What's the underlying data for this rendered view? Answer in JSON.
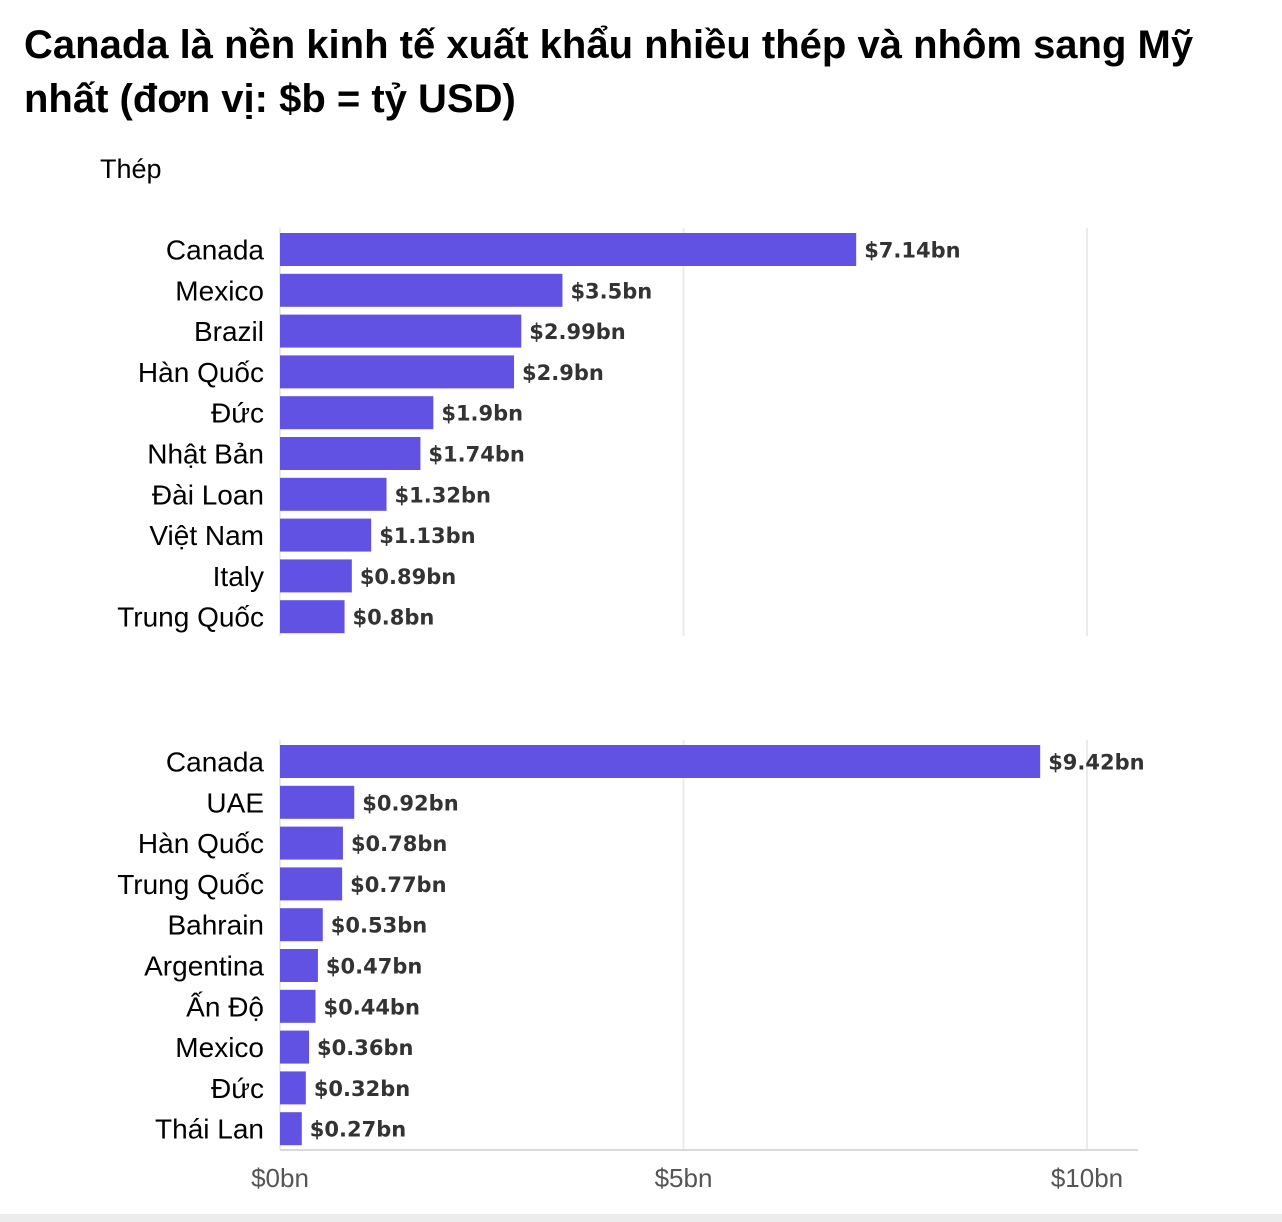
{
  "title": "Canada là nền kinh tế xuất khẩu nhiều thép và nhôm sang Mỹ nhất (đơn vị: $b = tỷ USD)",
  "chart_data": [
    {
      "type": "bar",
      "orientation": "horizontal",
      "title": "Thép",
      "categories": [
        "Canada",
        "Mexico",
        "Brazil",
        "Hàn Quốc",
        "Đức",
        "Nhật Bản",
        "Đài Loan",
        "Việt Nam",
        "Italy",
        "Trung Quốc"
      ],
      "values": [
        7.14,
        3.5,
        2.99,
        2.9,
        1.9,
        1.74,
        1.32,
        1.13,
        0.89,
        0.8
      ],
      "labels": [
        "$7.14bn",
        "$3.5bn",
        "$2.99bn",
        "$2.9bn",
        "$1.9bn",
        "$1.74bn",
        "$1.32bn",
        "$1.13bn",
        "$0.89bn",
        "$0.8bn"
      ],
      "xlim": [
        0,
        10.6
      ],
      "grid": true
    },
    {
      "type": "bar",
      "orientation": "horizontal",
      "categories": [
        "Canada",
        "UAE",
        "Hàn Quốc",
        "Trung Quốc",
        "Bahrain",
        "Argentina",
        "Ấn Độ",
        "Mexico",
        "Đức",
        "Thái Lan"
      ],
      "values": [
        9.42,
        0.92,
        0.78,
        0.77,
        0.53,
        0.47,
        0.44,
        0.36,
        0.32,
        0.27
      ],
      "labels": [
        "$9.42bn",
        "$0.92bn",
        "$0.78bn",
        "$0.77bn",
        "$0.53bn",
        "$0.47bn",
        "$0.44bn",
        "$0.36bn",
        "$0.32bn",
        "$0.27bn"
      ],
      "xlim": [
        0,
        10.6
      ],
      "grid": true,
      "xticks": [
        0,
        5,
        10
      ],
      "xtick_labels": [
        "$0bn",
        "$5bn",
        "$10bn"
      ]
    }
  ],
  "colors": {
    "bar": "#6252e3",
    "grid": "#ebebeb",
    "axis": "#d9d9d9"
  }
}
